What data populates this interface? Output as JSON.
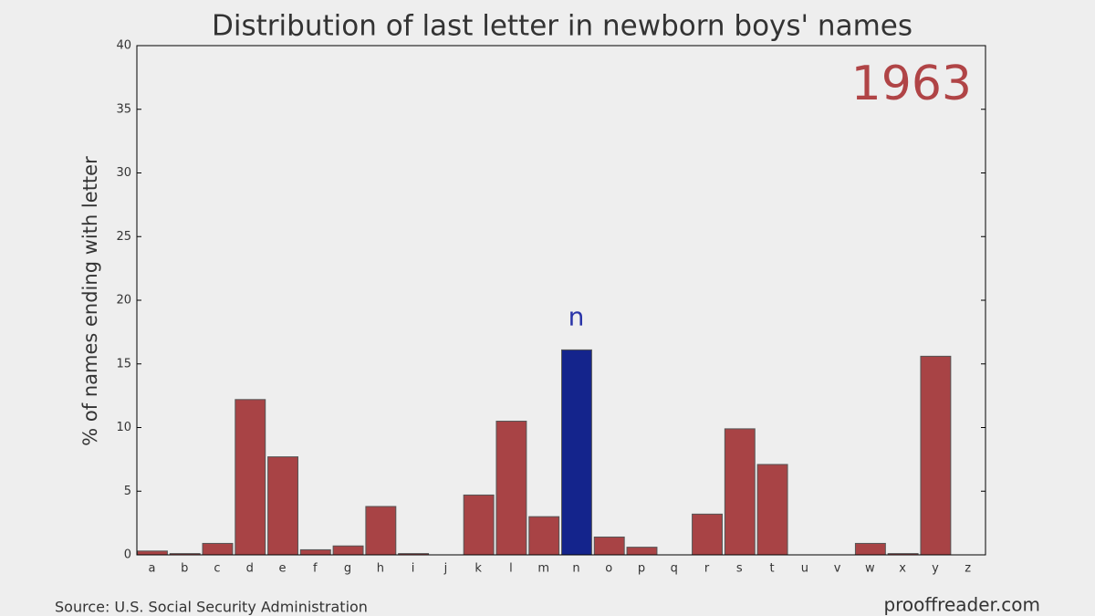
{
  "chart_data": {
    "type": "bar",
    "title": "Distribution of last letter in newborn boys' names",
    "y_label": "% of names ending with letter",
    "year": "1963",
    "annotation": "n",
    "source": "Source: U.S. Social Security Administration",
    "credit": "prooffreader.com",
    "categories": [
      "a",
      "b",
      "c",
      "d",
      "e",
      "f",
      "g",
      "h",
      "i",
      "j",
      "k",
      "l",
      "m",
      "n",
      "o",
      "p",
      "q",
      "r",
      "s",
      "t",
      "u",
      "v",
      "w",
      "x",
      "y",
      "z"
    ],
    "values": [
      0.3,
      0.1,
      0.9,
      12.2,
      7.7,
      0.4,
      0.7,
      3.8,
      0.1,
      0,
      4.7,
      10.5,
      3.0,
      16.1,
      1.4,
      0.6,
      0,
      3.2,
      9.9,
      7.1,
      0,
      0,
      0.9,
      0.1,
      15.6,
      0
    ],
    "colors": [
      "#a84345",
      "#a84345",
      "#a84345",
      "#a84345",
      "#a84345",
      "#a84345",
      "#a84345",
      "#a84345",
      "#a84345",
      "#a84345",
      "#a84345",
      "#a84345",
      "#a84345",
      "#14248c",
      "#a84345",
      "#a84345",
      "#a84345",
      "#a84345",
      "#a84345",
      "#a84345",
      "#a84345",
      "#a84345",
      "#a84345",
      "#a84345",
      "#a84345",
      "#a84345"
    ],
    "ylim": [
      0,
      40
    ],
    "yticks": [
      0,
      5,
      10,
      15,
      20,
      25,
      30,
      35,
      40
    ]
  }
}
